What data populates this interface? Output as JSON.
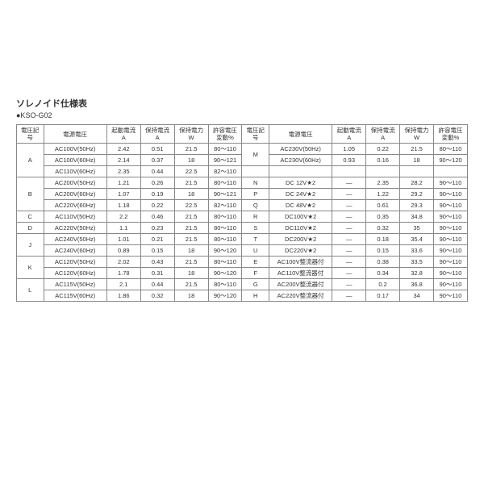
{
  "title": "ソレノイド仕様表",
  "subtitle": "●KSO-G02",
  "headers": {
    "code": "電圧記号",
    "voltage": "電源電圧",
    "start_current": "起動電流\nA",
    "hold_current": "保持電流\nA",
    "hold_power": "保持電力\nW",
    "tolerance": "許容電圧\n変動%"
  },
  "left_groups": [
    {
      "code": "A",
      "rows": [
        {
          "v": "AC100V(50Hz)",
          "sc": "2.42",
          "hc": "0.51",
          "hp": "21.5",
          "t": "80～110"
        },
        {
          "v": "AC100V(60Hz)",
          "sc": "2.14",
          "hc": "0.37",
          "hp": "18",
          "t": "90～121"
        },
        {
          "v": "AC110V(60Hz)",
          "sc": "2.35",
          "hc": "0.44",
          "hp": "22.5",
          "t": "82～110"
        }
      ]
    },
    {
      "code": "B",
      "rows": [
        {
          "v": "AC200V(50Hz)",
          "sc": "1.21",
          "hc": "0.26",
          "hp": "21.5",
          "t": "80～110"
        },
        {
          "v": "AC200V(60Hz)",
          "sc": "1.07",
          "hc": "0.19",
          "hp": "18",
          "t": "90～121"
        },
        {
          "v": "AC220V(60Hz)",
          "sc": "1.18",
          "hc": "0.22",
          "hp": "22.5",
          "t": "82～110"
        }
      ]
    },
    {
      "code": "C",
      "rows": [
        {
          "v": "AC110V(50Hz)",
          "sc": "2.2",
          "hc": "0.46",
          "hp": "21.5",
          "t": "80～110"
        }
      ]
    },
    {
      "code": "D",
      "rows": [
        {
          "v": "AC220V(50Hz)",
          "sc": "1.1",
          "hc": "0.23",
          "hp": "21.5",
          "t": "80～110"
        }
      ]
    },
    {
      "code": "J",
      "rows": [
        {
          "v": "AC240V(50Hz)",
          "sc": "1.01",
          "hc": "0.21",
          "hp": "21.5",
          "t": "80～110"
        },
        {
          "v": "AC240V(60Hz)",
          "sc": "0.89",
          "hc": "0.15",
          "hp": "18",
          "t": "90～120"
        }
      ]
    },
    {
      "code": "K",
      "rows": [
        {
          "v": "AC120V(50Hz)",
          "sc": "2.02",
          "hc": "0.43",
          "hp": "21.5",
          "t": "80～110"
        },
        {
          "v": "AC120V(60Hz)",
          "sc": "1.78",
          "hc": "0.31",
          "hp": "18",
          "t": "90～120"
        }
      ]
    },
    {
      "code": "L",
      "rows": [
        {
          "v": "AC115V(50Hz)",
          "sc": "2.1",
          "hc": "0.44",
          "hp": "21.5",
          "t": "80～110"
        },
        {
          "v": "AC115V(60Hz)",
          "sc": "1.86",
          "hc": "0.32",
          "hp": "18",
          "t": "90～120"
        }
      ]
    }
  ],
  "right_groups": [
    {
      "code": "M",
      "rows": [
        {
          "v": "AC230V(50Hz)",
          "sc": "1.05",
          "hc": "0.22",
          "hp": "21.5",
          "t": "80～110"
        },
        {
          "v": "AC230V(60Hz)",
          "sc": "0.93",
          "hc": "0.16",
          "hp": "18",
          "t": "90～120"
        }
      ]
    },
    {
      "code": "",
      "rows": [
        {
          "v": "",
          "sc": "",
          "hc": "",
          "hp": "",
          "t": ""
        }
      ]
    },
    {
      "code": "N",
      "rows": [
        {
          "v": "DC 12V★2",
          "sc": "—",
          "hc": "2.35",
          "hp": "28.2",
          "t": "90～110"
        }
      ]
    },
    {
      "code": "P",
      "rows": [
        {
          "v": "DC 24V★2",
          "sc": "—",
          "hc": "1.22",
          "hp": "29.2",
          "t": "90～110"
        }
      ]
    },
    {
      "code": "Q",
      "rows": [
        {
          "v": "DC 48V★2",
          "sc": "—",
          "hc": "0.61",
          "hp": "29.3",
          "t": "90～110"
        }
      ]
    },
    {
      "code": "R",
      "rows": [
        {
          "v": "DC100V★2",
          "sc": "—",
          "hc": "0.35",
          "hp": "34.8",
          "t": "90～110"
        }
      ]
    },
    {
      "code": "S",
      "rows": [
        {
          "v": "DC110V★2",
          "sc": "—",
          "hc": "0.32",
          "hp": "35",
          "t": "90～110"
        }
      ]
    },
    {
      "code": "T",
      "rows": [
        {
          "v": "DC200V★2",
          "sc": "—",
          "hc": "0.18",
          "hp": "35.4",
          "t": "90～110"
        }
      ]
    },
    {
      "code": "U",
      "rows": [
        {
          "v": "DC220V★2",
          "sc": "—",
          "hc": "0.15",
          "hp": "33.6",
          "t": "90～110"
        }
      ]
    },
    {
      "code": "E",
      "rows": [
        {
          "v": "AC100V整流器付",
          "sc": "—",
          "hc": "0.38",
          "hp": "33.5",
          "t": "90～110"
        }
      ]
    },
    {
      "code": "F",
      "rows": [
        {
          "v": "AC110V整流器付",
          "sc": "—",
          "hc": "0.34",
          "hp": "32.8",
          "t": "90～110"
        }
      ]
    },
    {
      "code": "G",
      "rows": [
        {
          "v": "AC200V整流器付",
          "sc": "—",
          "hc": "0.2",
          "hp": "36.8",
          "t": "90～110"
        }
      ]
    },
    {
      "code": "H",
      "rows": [
        {
          "v": "AC220V整流器付",
          "sc": "—",
          "hc": "0.17",
          "hp": "34",
          "t": "90～110"
        }
      ]
    }
  ]
}
